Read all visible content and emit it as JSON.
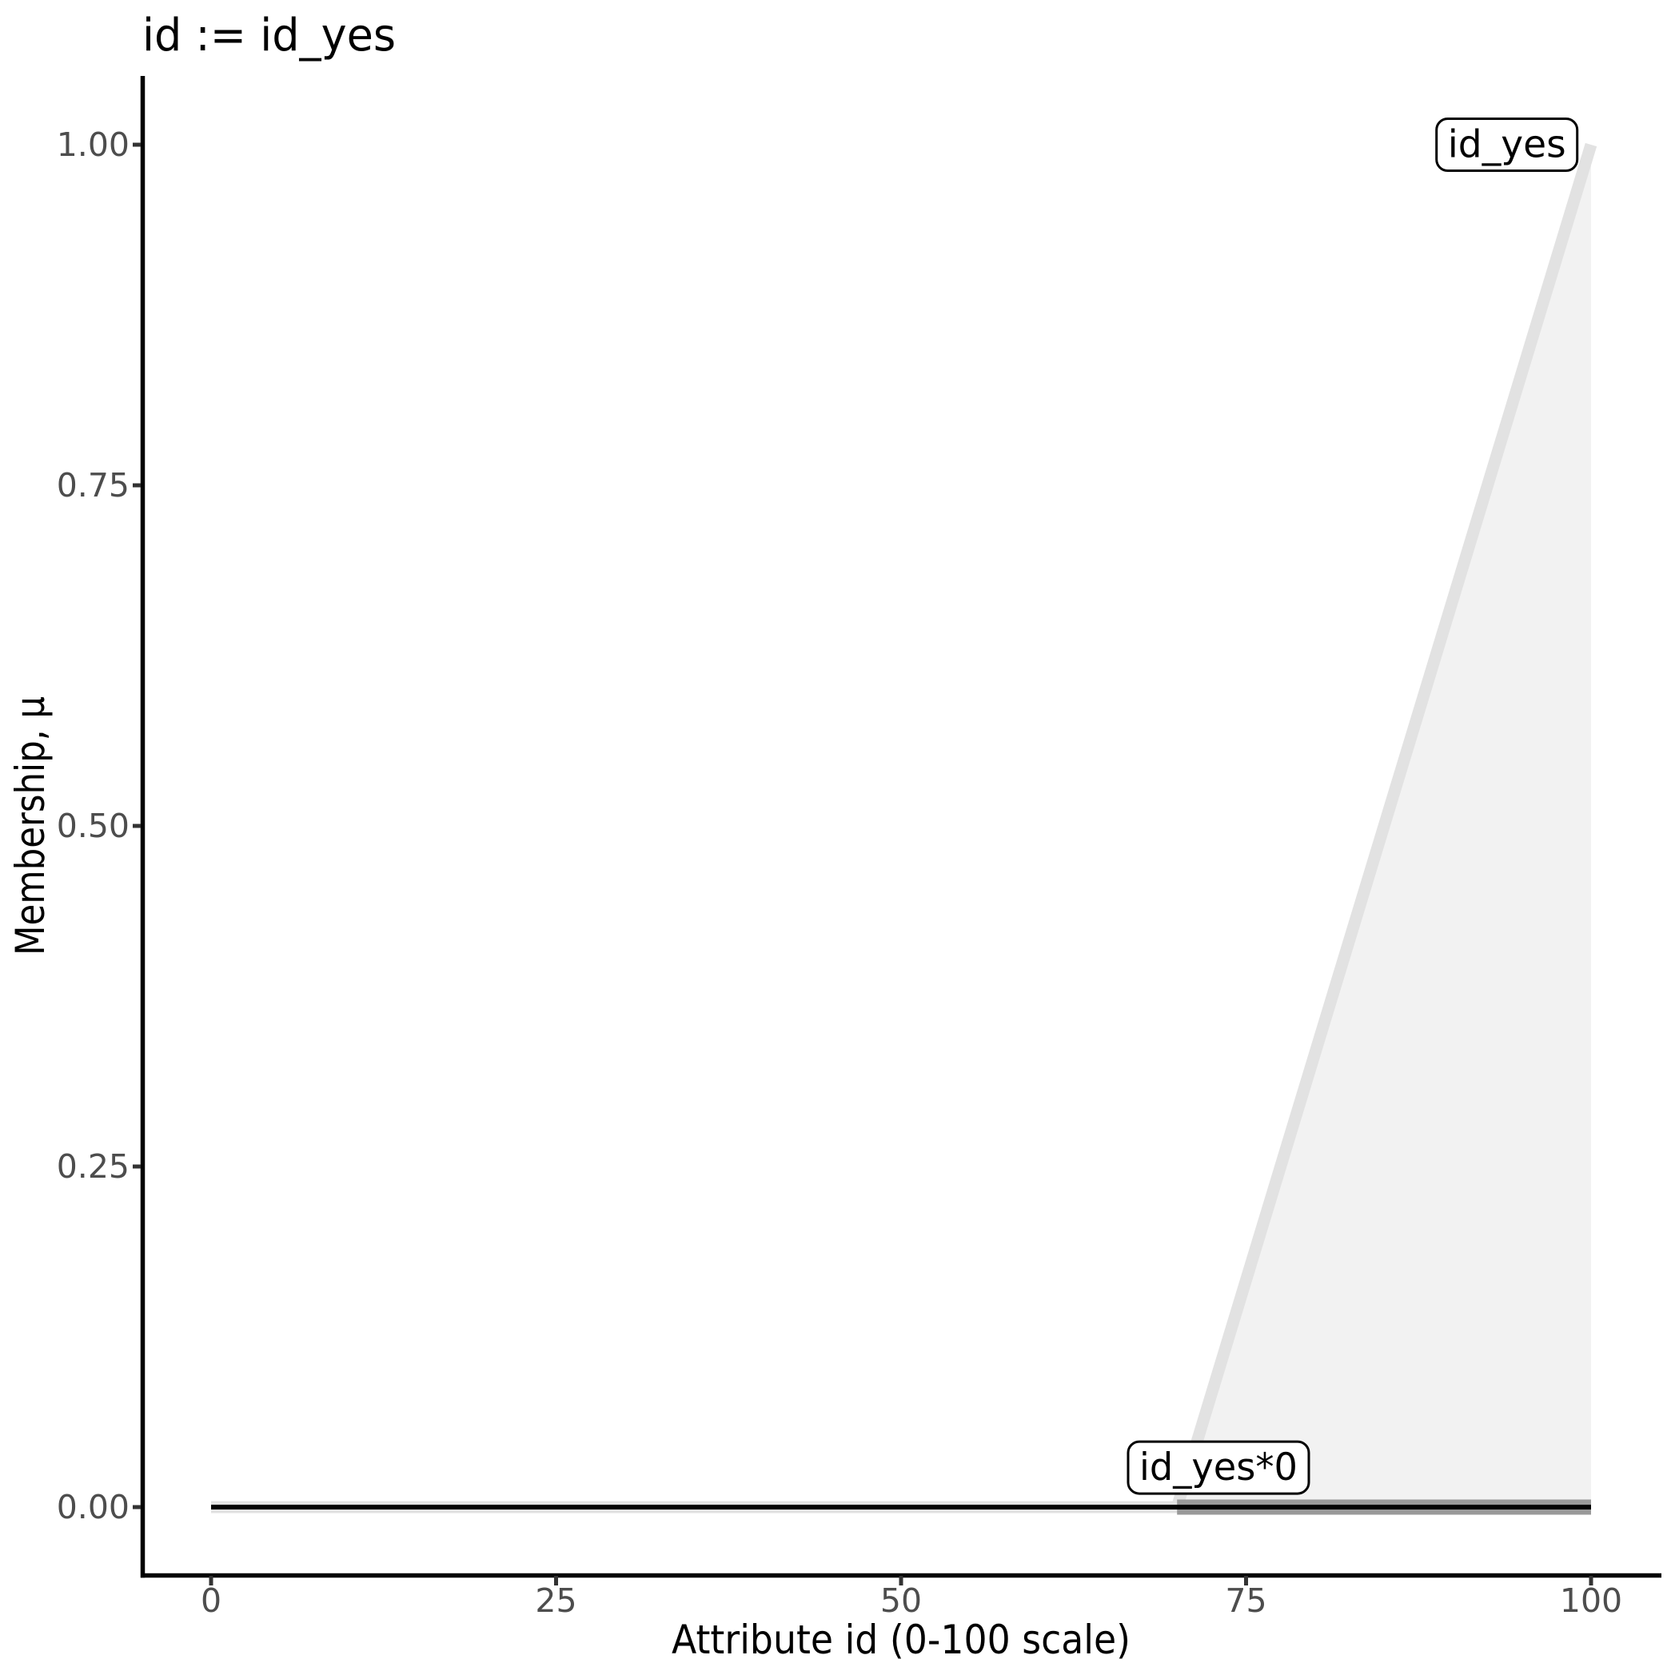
{
  "chart_data": {
    "type": "area",
    "title": "id := id_yes",
    "xlabel": "Attribute id (0-100 scale)",
    "ylabel": "Membership, μ",
    "xlim": [
      0,
      100
    ],
    "ylim": [
      0,
      1
    ],
    "x_ticks": [
      0,
      25,
      50,
      75,
      100
    ],
    "x_tick_labels": [
      "0",
      "25",
      "50",
      "75",
      "100"
    ],
    "y_ticks": [
      0,
      0.25,
      0.5,
      0.75,
      1
    ],
    "y_tick_labels": [
      "0.00",
      "0.25",
      "0.50",
      "0.75",
      "1.00"
    ],
    "grid": "off",
    "legend": "none",
    "area": {
      "name": "id_yes-support-area",
      "points": [
        [
          70,
          0
        ],
        [
          100,
          1
        ],
        [
          100,
          0
        ]
      ],
      "fill": "#f2f2f2"
    },
    "series": [
      {
        "name": "id_yes",
        "points": [
          [
            0,
            0
          ],
          [
            70,
            0
          ],
          [
            100,
            1
          ]
        ],
        "color": "#e2e2e2",
        "width": 15
      },
      {
        "name": "id_yes*0",
        "points": [
          [
            70,
            0
          ],
          [
            100,
            0
          ]
        ],
        "color": "#999999",
        "width": 19
      },
      {
        "name": "id",
        "points": [
          [
            0,
            0
          ],
          [
            100,
            0
          ]
        ],
        "color": "#000000",
        "width": 6
      }
    ],
    "labels": [
      {
        "text": "id_yes",
        "x": 93.9,
        "mu": 1.0
      },
      {
        "text": "id_yes*0",
        "x": 73.0,
        "mu": 0.029
      }
    ],
    "colors": {
      "axis_line": "#000000",
      "tick_mark": "#333333",
      "tick_label": "#4d4d4d",
      "text": "#000000",
      "label_box_fill": "#ffffff",
      "label_box_border": "#000000"
    }
  }
}
